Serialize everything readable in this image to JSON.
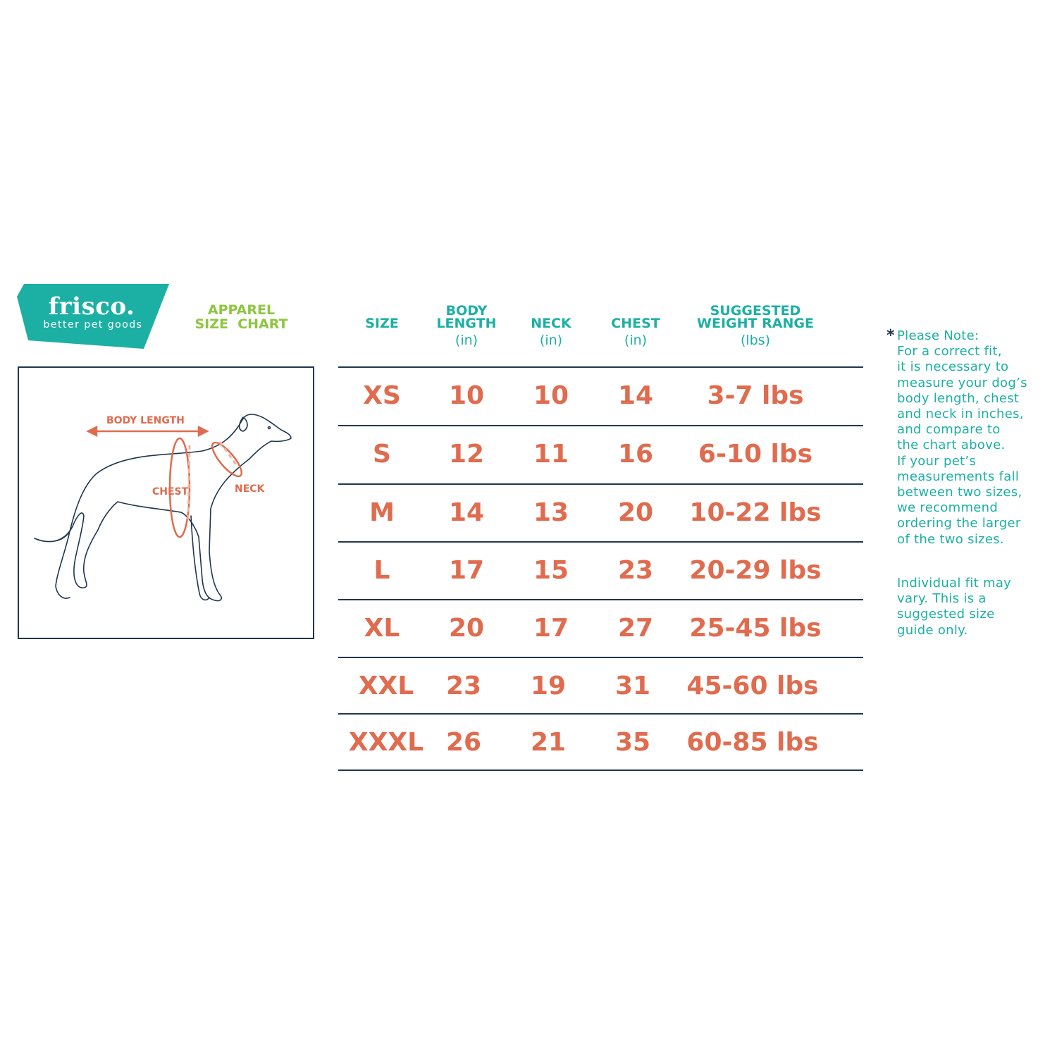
{
  "brand": {
    "name": "frisco.",
    "tagline": "better pet goods",
    "color": "#1bb0a3"
  },
  "title": {
    "line1": "APPAREL",
    "line2": "SIZE  CHART",
    "color": "#8dc63f"
  },
  "diagram": {
    "labels": {
      "body_length": "BODY LENGTH",
      "chest": "CHEST",
      "neck": "NECK"
    },
    "accent": "#e06b4e",
    "outline": "#1f3650"
  },
  "table": {
    "headers": [
      {
        "line1": "",
        "line2": "SIZE",
        "unit": ""
      },
      {
        "line1": "BODY",
        "line2": "LENGTH",
        "unit": "(in)"
      },
      {
        "line1": "",
        "line2": "NECK",
        "unit": "(in)"
      },
      {
        "line1": "",
        "line2": "CHEST",
        "unit": "(in)"
      },
      {
        "line1": "SUGGESTED",
        "line2": "WEIGHT RANGE",
        "unit": "(lbs)"
      }
    ],
    "rows": [
      [
        "XS",
        "10",
        "10",
        "14",
        "3-7 lbs"
      ],
      [
        "S",
        "12",
        "11",
        "16",
        "6-10 lbs"
      ],
      [
        "M",
        "14",
        "13",
        "20",
        "10-22 lbs"
      ],
      [
        "L",
        "17",
        "15",
        "23",
        "20-29 lbs"
      ],
      [
        "XL",
        "20",
        "17",
        "27",
        "25-45 lbs"
      ],
      [
        "XXL",
        "23",
        "19",
        "31",
        "45-60 lbs"
      ],
      [
        "XXXL",
        "26",
        "21",
        "35",
        "60-85 lbs"
      ]
    ],
    "header_color": "#1bb0a3",
    "value_color": "#e06b4e"
  },
  "note": {
    "asterisk": "*",
    "lines": [
      "Please Note:",
      "For a correct fit,",
      "it is necessary to",
      "measure your dog’s",
      "body length, chest",
      "and neck in inches,",
      "and compare to",
      "the chart above.",
      "If your pet’s",
      "measurements fall",
      "between two sizes,",
      "we recommend",
      "ordering the larger",
      "of the two sizes."
    ],
    "disclaimer": [
      "Individual fit may",
      "vary. This is a",
      "suggested size",
      "guide only."
    ]
  }
}
